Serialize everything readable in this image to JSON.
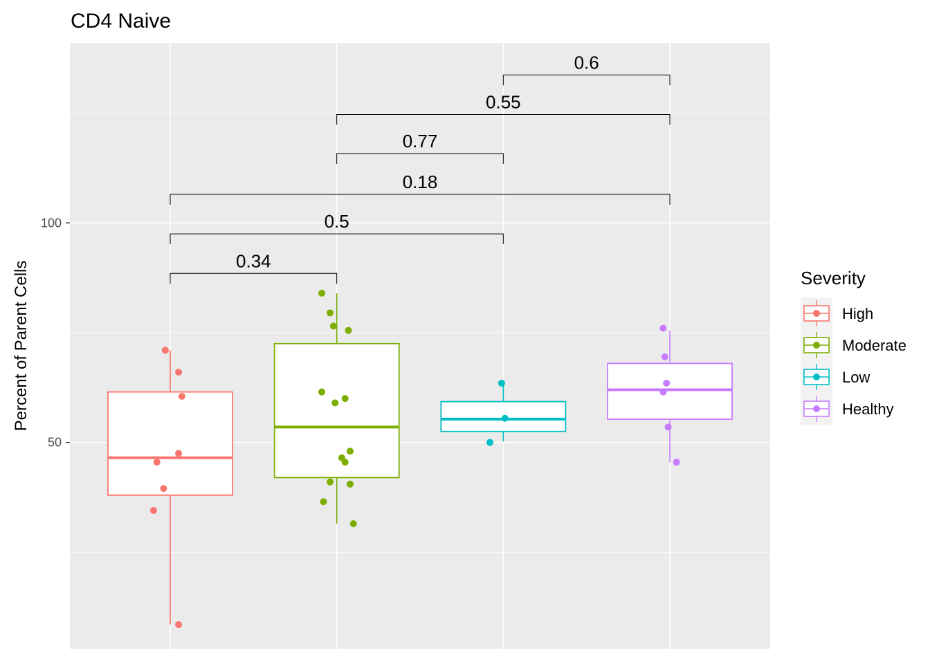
{
  "chart_data": {
    "type": "box",
    "title": "CD4 Naive",
    "xlabel": "",
    "ylabel": "Percent of Parent Cells",
    "ylim": [
      3,
      141
    ],
    "yticks": [
      50,
      100
    ],
    "grid": true,
    "legend": {
      "title": "Severity",
      "position": "right",
      "items": [
        {
          "label": "High",
          "color": "#F8766D"
        },
        {
          "label": "Moderate",
          "color": "#7CAE00"
        },
        {
          "label": "Low",
          "color": "#00BFC4"
        },
        {
          "label": "Healthy",
          "color": "#C77CFF"
        }
      ]
    },
    "groups": [
      {
        "name": "High",
        "color": "#F8766D",
        "q1": 38,
        "median": 46.5,
        "q3": 61.5,
        "whisker_low": 8.5,
        "whisker_high": 71,
        "points": [
          {
            "x": 0.05,
            "y": 66
          },
          {
            "x": 0.07,
            "y": 60.5
          },
          {
            "x": 0.05,
            "y": 47.5
          },
          {
            "x": -0.08,
            "y": 45.5
          },
          {
            "x": -0.04,
            "y": 39.5
          },
          {
            "x": -0.1,
            "y": 34.5
          },
          {
            "x": -0.03,
            "y": 71
          },
          {
            "x": 0.05,
            "y": 8.5
          }
        ]
      },
      {
        "name": "Moderate",
        "color": "#7CAE00",
        "q1": 42,
        "median": 53.5,
        "q3": 72.5,
        "whisker_low": 31.5,
        "whisker_high": 84,
        "points": [
          {
            "x": -0.09,
            "y": 84
          },
          {
            "x": -0.04,
            "y": 79.5
          },
          {
            "x": -0.02,
            "y": 76.5
          },
          {
            "x": 0.07,
            "y": 75.5
          },
          {
            "x": -0.09,
            "y": 61.5
          },
          {
            "x": 0.05,
            "y": 60
          },
          {
            "x": -0.01,
            "y": 59
          },
          {
            "x": 0.08,
            "y": 48
          },
          {
            "x": 0.03,
            "y": 46.5
          },
          {
            "x": 0.05,
            "y": 45.5
          },
          {
            "x": -0.04,
            "y": 41
          },
          {
            "x": 0.08,
            "y": 40.5
          },
          {
            "x": -0.08,
            "y": 36.5
          },
          {
            "x": 0.1,
            "y": 31.5
          }
        ]
      },
      {
        "name": "Low",
        "color": "#00BFC4",
        "q1": 52.5,
        "median": 55.3,
        "q3": 59.3,
        "whisker_low": 50.2,
        "whisker_high": 63.5,
        "points": [
          {
            "x": -0.01,
            "y": 63.5
          },
          {
            "x": 0.01,
            "y": 55.5
          },
          {
            "x": -0.08,
            "y": 50
          }
        ]
      },
      {
        "name": "Healthy",
        "color": "#C77CFF",
        "q1": 55.3,
        "median": 62,
        "q3": 68,
        "whisker_low": 45.5,
        "whisker_high": 75.5,
        "points": [
          {
            "x": -0.04,
            "y": 76
          },
          {
            "x": -0.03,
            "y": 69.5
          },
          {
            "x": -0.02,
            "y": 63.5
          },
          {
            "x": -0.04,
            "y": 61.5
          },
          {
            "x": -0.01,
            "y": 53.5
          },
          {
            "x": 0.04,
            "y": 45.5
          }
        ]
      }
    ],
    "comparisons": [
      {
        "from": 0,
        "to": 1,
        "label": "0.34",
        "y": 88.5
      },
      {
        "from": 0,
        "to": 2,
        "label": "0.5",
        "y": 97.5
      },
      {
        "from": 0,
        "to": 3,
        "label": "0.18",
        "y": 106.5
      },
      {
        "from": 1,
        "to": 2,
        "label": "0.77",
        "y": 115.8
      },
      {
        "from": 1,
        "to": 3,
        "label": "0.55",
        "y": 124.7
      },
      {
        "from": 2,
        "to": 3,
        "label": "0.6",
        "y": 133.7
      }
    ]
  }
}
